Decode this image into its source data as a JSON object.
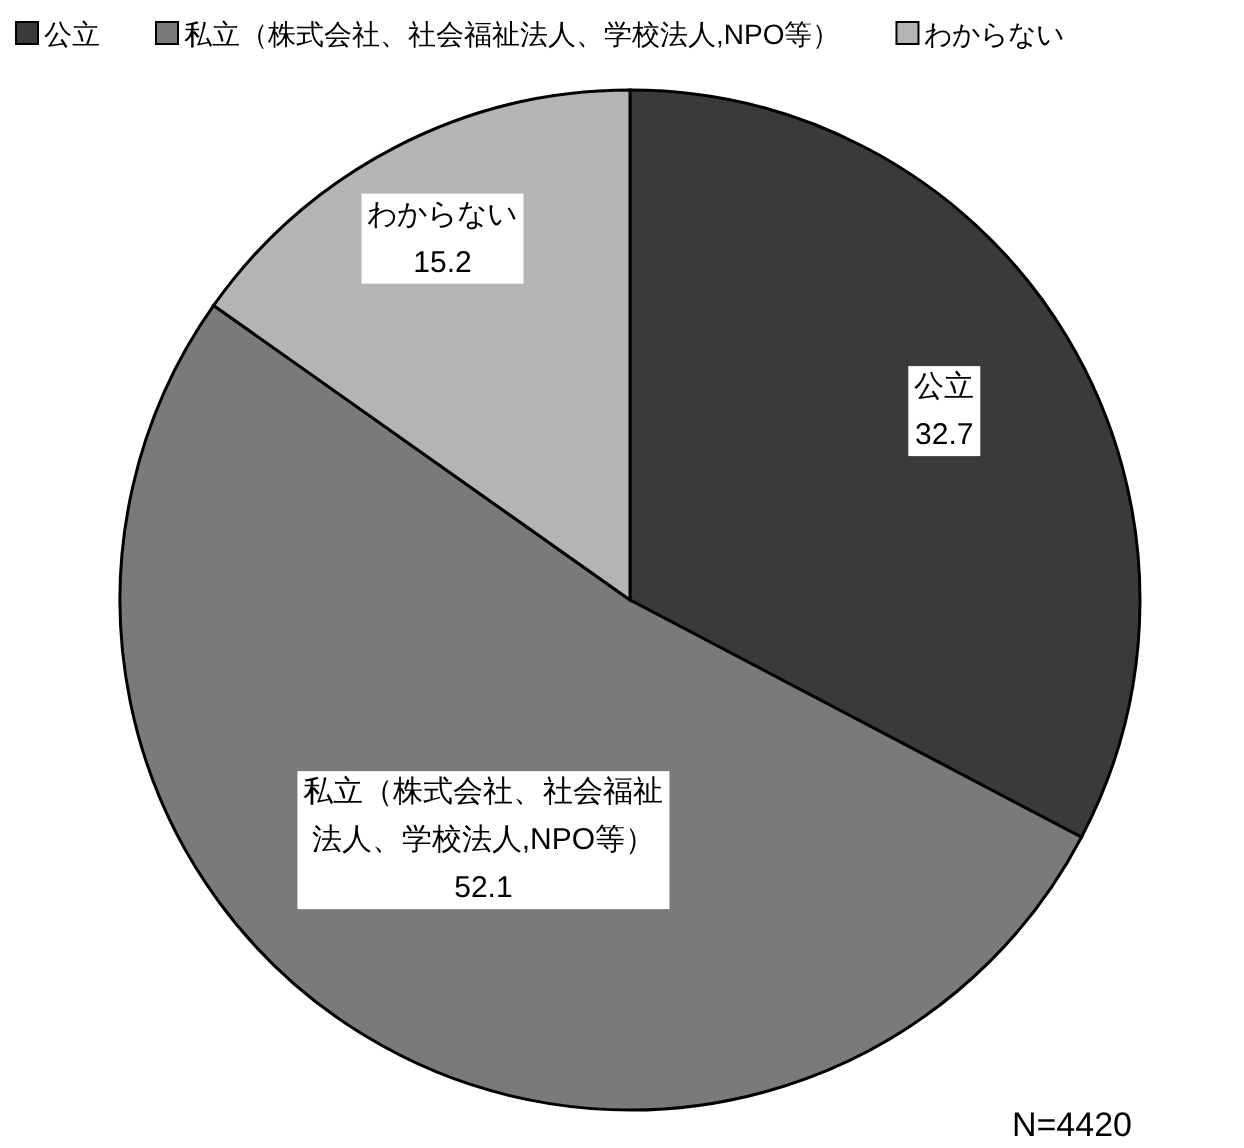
{
  "chart_data": {
    "type": "pie",
    "categories": [
      "公立",
      "私立（株式会社、社会福祉法人、学校法人,NPO等）",
      "わからない"
    ],
    "values": [
      32.7,
      52.1,
      15.2
    ],
    "colors": [
      "#3a3a3a",
      "#7a7a7a",
      "#b4b4b4"
    ],
    "data_labels": true,
    "legend": "top",
    "annotations": [
      "N=4420"
    ]
  }
}
